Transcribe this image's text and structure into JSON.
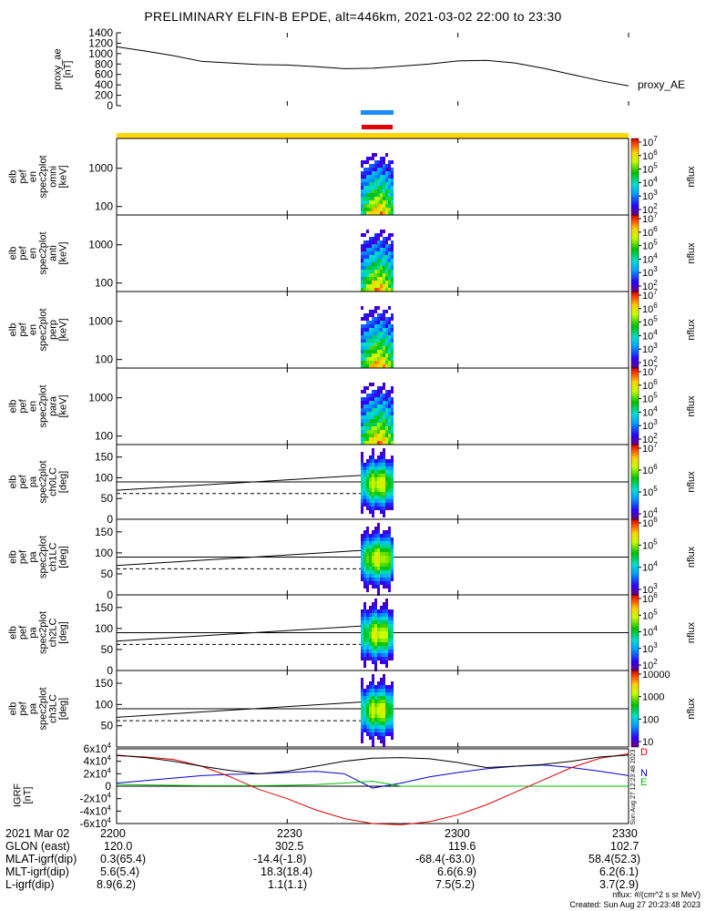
{
  "title": "PRELIMINARY ELFIN-B EPDE, alt=446km, 2021-03-02 22:00 to 23:30",
  "footer": {
    "units": "nflux: #/(cm^2 s sr MeV)",
    "created": "Created: Sun Aug 27 20:23:48 2023",
    "side_stamp": "Sun Aug 27 12:23:48 2023"
  },
  "colors": {
    "ae_line": "#000000",
    "bar_blue": "#1a8cff",
    "bar_red": "#e00000",
    "bar_yellow": "#ffd700",
    "igrf_n": "#0000cc",
    "igrf_e": "#00c000",
    "igrf_d": "#dd0000",
    "igrf_total": "#000000"
  },
  "chart_data": [
    {
      "type": "line",
      "panel": "proxy_ae",
      "ylabel_lines": [
        "proxy_ae",
        "[nT]"
      ],
      "legend": "proxy_AE",
      "ylim": [
        0,
        1400
      ],
      "yticks": [
        "0",
        "200",
        "400",
        "600",
        "800",
        "1000",
        "1200",
        "1400"
      ],
      "x_minutes": [
        0,
        5,
        10,
        15,
        20,
        25,
        30,
        35,
        40,
        45,
        50,
        55,
        60,
        65,
        70,
        75,
        80,
        85,
        90
      ],
      "values": [
        1130,
        1050,
        960,
        850,
        820,
        790,
        780,
        750,
        710,
        720,
        760,
        800,
        860,
        870,
        820,
        720,
        600,
        480,
        380
      ]
    },
    {
      "type": "heatmap",
      "panel": "spec_omni",
      "ylabel_lines": [
        "elb",
        "pef",
        "en",
        "spec2plot",
        "omni",
        "[keV]"
      ],
      "yscale": "log",
      "yticks": [
        "100",
        "1000"
      ],
      "colorbar_label": "nflux",
      "colorbar_ticks": [
        "10",
        "10",
        "10",
        "10",
        "10",
        "10"
      ],
      "colorbar_exps": [
        "2",
        "3",
        "4",
        "5",
        "6",
        "7"
      ]
    },
    {
      "type": "heatmap",
      "panel": "spec_anti",
      "ylabel_lines": [
        "elb",
        "pef",
        "en",
        "spec2plot",
        "anti",
        "[keV]"
      ],
      "yscale": "log",
      "yticks": [
        "100",
        "1000"
      ],
      "colorbar_label": "nflux",
      "colorbar_ticks": [
        "10",
        "10",
        "10",
        "10",
        "10",
        "10"
      ],
      "colorbar_exps": [
        "2",
        "3",
        "4",
        "5",
        "6",
        "7"
      ]
    },
    {
      "type": "heatmap",
      "panel": "spec_perp",
      "ylabel_lines": [
        "elb",
        "pef",
        "en",
        "spec2plot",
        "perp",
        "[keV]"
      ],
      "yscale": "log",
      "yticks": [
        "100",
        "1000"
      ],
      "colorbar_label": "nflux",
      "colorbar_ticks": [
        "10",
        "10",
        "10",
        "10",
        "10",
        "10"
      ],
      "colorbar_exps": [
        "2",
        "3",
        "4",
        "5",
        "6",
        "7"
      ]
    },
    {
      "type": "heatmap",
      "panel": "spec_para",
      "ylabel_lines": [
        "elb",
        "pef",
        "en",
        "spec2plot",
        "para",
        "[keV]"
      ],
      "yscale": "log",
      "yticks": [
        "100",
        "1000"
      ],
      "colorbar_label": "nflux",
      "colorbar_ticks": [
        "10",
        "10",
        "10",
        "10",
        "10",
        "10"
      ],
      "colorbar_exps": [
        "2",
        "3",
        "4",
        "5",
        "6",
        "7"
      ]
    },
    {
      "type": "heatmap",
      "panel": "pa_ch0",
      "ylabel_lines": [
        "elb",
        "pef",
        "pa",
        "spec2plot",
        "ch0LC",
        "[deg]"
      ],
      "ylim": [
        0,
        180
      ],
      "yticks": [
        "0",
        "50",
        "100",
        "150"
      ],
      "colorbar_label": "nflux",
      "colorbar_ticks": [
        "10",
        "10",
        "10",
        "10"
      ],
      "colorbar_exps": [
        "4",
        "5",
        "6",
        "7"
      ]
    },
    {
      "type": "heatmap",
      "panel": "pa_ch1",
      "ylabel_lines": [
        "elb",
        "pef",
        "pa",
        "spec2plot",
        "ch1LC",
        "[deg]"
      ],
      "ylim": [
        0,
        180
      ],
      "yticks": [
        "0",
        "50",
        "100",
        "150"
      ],
      "colorbar_label": "nflux",
      "colorbar_ticks": [
        "10",
        "10",
        "10",
        "10"
      ],
      "colorbar_exps": [
        "3",
        "4",
        "5",
        "6"
      ]
    },
    {
      "type": "heatmap",
      "panel": "pa_ch2",
      "ylabel_lines": [
        "elb",
        "pef",
        "pa",
        "spec2plot",
        "ch2LC",
        "[deg]"
      ],
      "ylim": [
        0,
        180
      ],
      "yticks": [
        "0",
        "50",
        "100",
        "150"
      ],
      "colorbar_label": "nflux",
      "colorbar_ticks": [
        "10",
        "10",
        "10",
        "10",
        "10"
      ],
      "colorbar_exps": [
        "2",
        "3",
        "4",
        "5",
        "6"
      ]
    },
    {
      "type": "heatmap",
      "panel": "pa_ch3",
      "ylabel_lines": [
        "elb",
        "pef",
        "pa",
        "spec2plot",
        "ch3LC",
        "[deg]"
      ],
      "ylim": [
        0,
        180
      ],
      "yticks": [
        "50",
        "100",
        "150"
      ],
      "colorbar_label": "nflux",
      "colorbar_ticks": [
        "10",
        "100",
        "1000",
        "10000"
      ],
      "colorbar_exps": [
        "",
        "",
        "",
        ""
      ]
    },
    {
      "type": "line",
      "panel": "igrf",
      "ylabel_lines": [
        "IGRF",
        "[nT]"
      ],
      "ylim": [
        -60000,
        60000
      ],
      "yticks": [
        "-6x10",
        "-4x10",
        "-2x10",
        "0",
        "2x10",
        "4x10",
        "6x10"
      ],
      "ytick_exp": "4",
      "x_minutes": [
        0,
        5,
        10,
        15,
        20,
        25,
        30,
        35,
        40,
        45,
        50,
        55,
        60,
        65,
        70,
        75,
        80,
        85,
        90
      ],
      "series": [
        {
          "name": "N",
          "values": [
            5000,
            9000,
            13000,
            17000,
            19000,
            20000,
            22000,
            24000,
            20000,
            -3000,
            5000,
            15000,
            22000,
            28000,
            32000,
            34000,
            30000,
            24000,
            17000
          ]
        },
        {
          "name": "E",
          "values": [
            3000,
            2000,
            1500,
            1000,
            1000,
            1000,
            1500,
            2500,
            5000,
            8000,
            0,
            0,
            0,
            0,
            0,
            0,
            0,
            0,
            0
          ]
        },
        {
          "name": "D",
          "values": [
            49000,
            47000,
            43000,
            32000,
            15000,
            -5000,
            -20000,
            -38000,
            -52000,
            -60000,
            -62000,
            -57000,
            -46000,
            -30000,
            -10000,
            10000,
            30000,
            45000,
            52000
          ]
        },
        {
          "name": "",
          "values": [
            50000,
            46000,
            40000,
            32000,
            25000,
            20000,
            24000,
            32000,
            40000,
            45000,
            46000,
            44000,
            38000,
            30000,
            32000,
            35000,
            40000,
            47000,
            50000
          ]
        }
      ]
    }
  ],
  "axis": {
    "x_ticks": [
      "2200",
      "2230",
      "2300",
      "2330"
    ],
    "rows": [
      {
        "label": "2021 Mar 02",
        "values": [
          "2200",
          "2230",
          "2300",
          "2330"
        ]
      },
      {
        "label": "GLON (east)",
        "values": [
          "120.0",
          "302.5",
          "119.6",
          "102.7"
        ]
      },
      {
        "label": "MLAT-igrf(dip)",
        "values": [
          "0.3(65.4)",
          "-14.4(-1.8)",
          "-68.4(-63.0)",
          "58.4(52.3)"
        ]
      },
      {
        "label": "MLT-igrf(dip)",
        "values": [
          "5.6(5.4)",
          "18.3(18.4)",
          "6.6(6.9)",
          "6.2(6.1)"
        ]
      },
      {
        "label": "L-igrf(dip)",
        "values": [
          "8.9(6.2)",
          "1.1(1.1)",
          "7.5(5.2)",
          "3.7(2.9)"
        ]
      }
    ]
  }
}
